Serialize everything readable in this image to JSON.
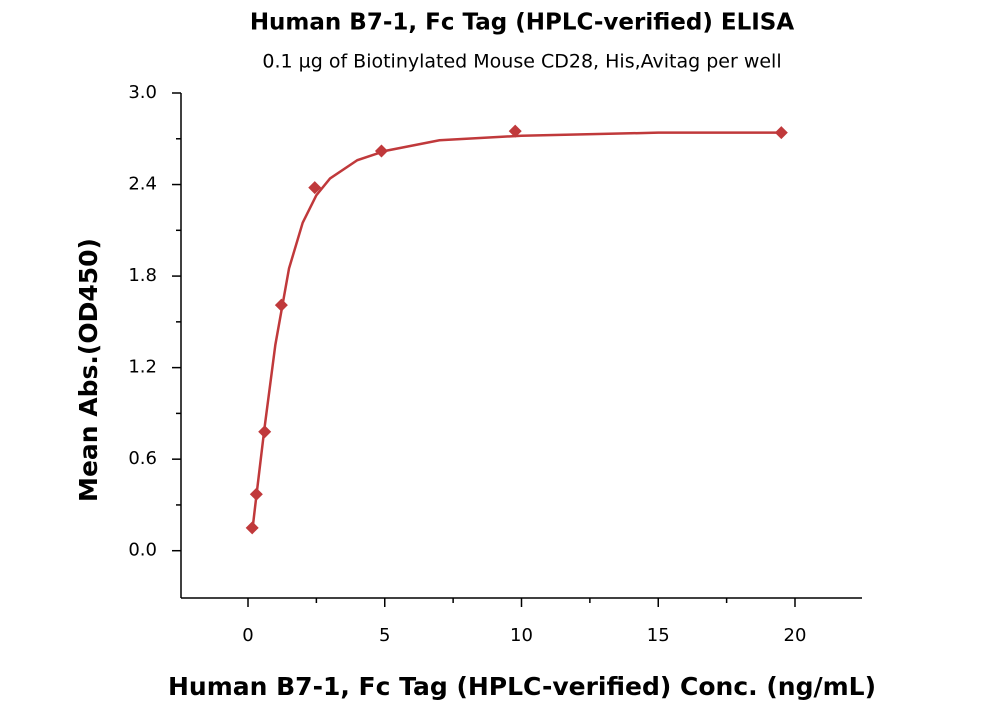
{
  "chart_data": {
    "type": "scatter",
    "title": "Human B7-1, Fc Tag (HPLC-verified) ELISA",
    "subtitle": "0.1 µg of Biotinylated Mouse CD28, His,Avitag per well",
    "x_label": "Human B7-1, Fc Tag (HPLC-verified) Conc. (ng/mL)",
    "y_label": "Mean Abs.(OD450)",
    "xlim": [
      -2.45,
      22.45
    ],
    "ylim": [
      -0.31,
      3.0
    ],
    "xticks": [
      0,
      5,
      10,
      15,
      20
    ],
    "yticks": [
      {
        "value": 0,
        "label": "0.0"
      },
      0.6,
      1.2,
      1.8,
      2.4,
      {
        "value": 3,
        "label": "3.0"
      }
    ],
    "color": "#c0393b",
    "x": [
      0.153,
      0.305,
      0.61,
      1.22,
      2.44,
      4.88,
      9.77,
      19.5
    ],
    "values": [
      0.15,
      0.37,
      0.78,
      1.61,
      2.38,
      2.62,
      2.75,
      2.74
    ],
    "fit": {
      "x": [
        0.15,
        0.3,
        0.6,
        1,
        1.5,
        2,
        2.5,
        3,
        4,
        5,
        7,
        10,
        15,
        19.5
      ],
      "values": [
        0.12,
        0.35,
        0.8,
        1.35,
        1.85,
        2.15,
        2.33,
        2.44,
        2.56,
        2.62,
        2.69,
        2.72,
        2.74,
        2.74
      ]
    }
  }
}
